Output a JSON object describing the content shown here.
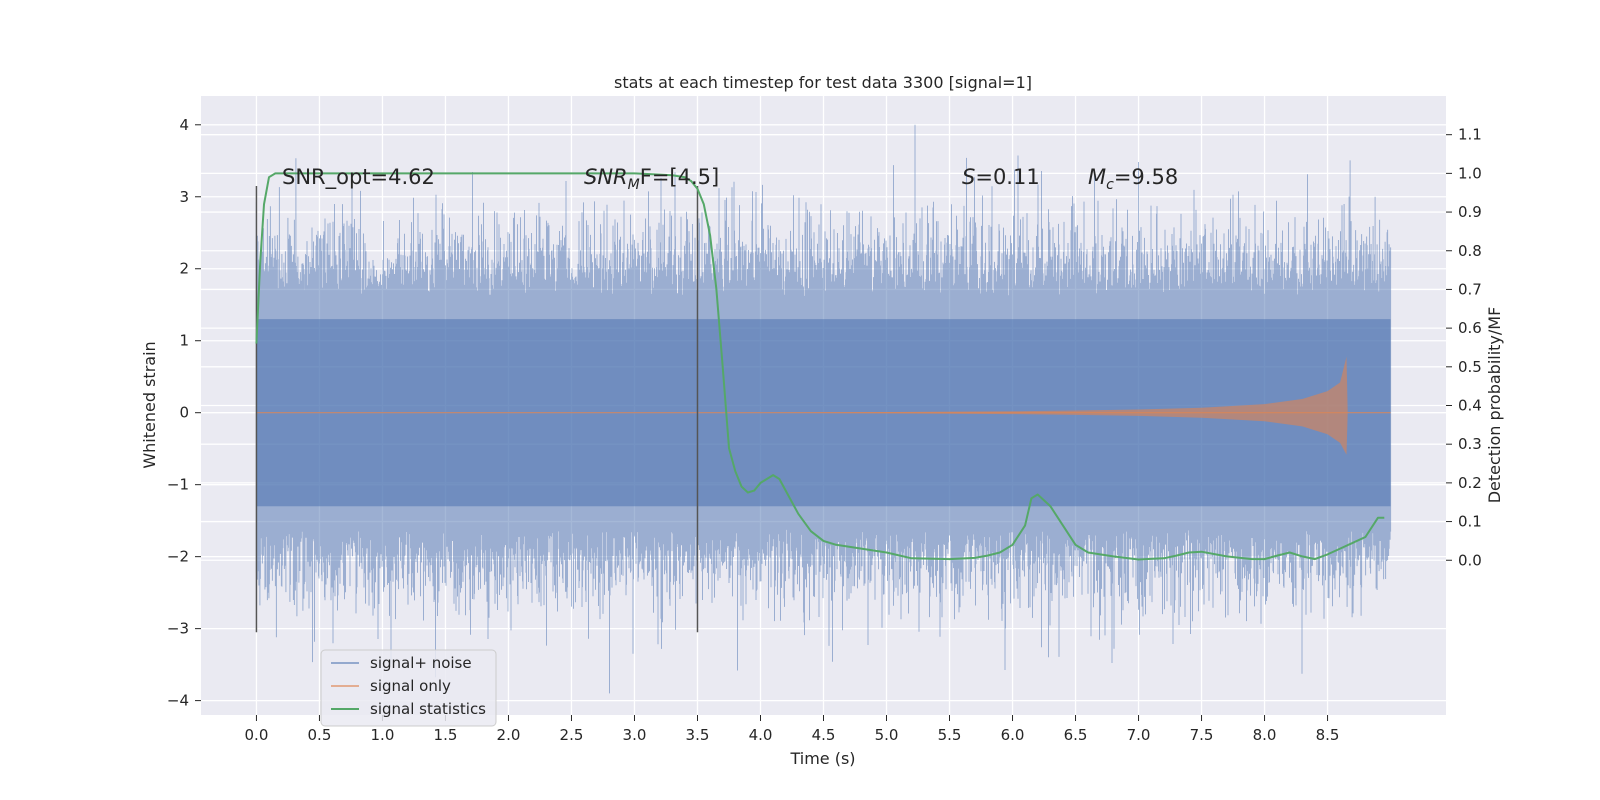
{
  "chart_data": {
    "type": "line",
    "title": "stats at each timestep for test data 3300 [signal=1]",
    "xlabel": "Time (s)",
    "ylabel": "Whitened strain",
    "ylabel_right": "Detection probability/MF",
    "xlim": [
      -0.44,
      9.44
    ],
    "ylim": [
      -4.2,
      4.4
    ],
    "ylim_right": [
      -0.4,
      1.2
    ],
    "xticks": [
      "0.0",
      "0.5",
      "1.0",
      "1.5",
      "2.0",
      "2.5",
      "3.0",
      "3.5",
      "4.0",
      "4.5",
      "5.0",
      "5.5",
      "6.0",
      "6.5",
      "7.0",
      "7.5",
      "8.0",
      "8.5"
    ],
    "yticks": [
      "4",
      "3",
      "2",
      "1",
      "0",
      "−1",
      "−2",
      "−3",
      "−4"
    ],
    "yticks_right": [
      "1.1",
      "1.0",
      "0.9",
      "0.8",
      "0.7",
      "0.6",
      "0.5",
      "0.4",
      "0.3",
      "0.2",
      "0.1",
      "0.0"
    ],
    "grid": true,
    "legend_position": "lower-left",
    "annotations": {
      "snr_opt": "SNR_opt=4.62",
      "snr_mf_math": "SNR",
      "snr_mf_sub": "M",
      "snr_mf_rest": "F=[4.5]",
      "s_math": "S",
      "s_rest": "=0.11",
      "mc_math": "M",
      "mc_sub": "c",
      "mc_rest": "=9.58"
    },
    "markers": [
      0.0,
      3.5
    ],
    "series": [
      {
        "name": "signal+ noise",
        "color": "#4c72b0",
        "x_range": [
          0.0,
          9.0
        ],
        "envelope_upper": 1.3,
        "envelope_lower": -1.3,
        "max": 4.0,
        "min": -3.9
      },
      {
        "name": "signal only",
        "color": "#dd8452",
        "x": [
          0.0,
          4.0,
          5.0,
          6.0,
          6.5,
          7.0,
          7.5,
          8.0,
          8.3,
          8.5,
          8.6,
          8.65,
          8.66
        ],
        "amplitude": [
          0.0,
          0.0,
          0.01,
          0.02,
          0.03,
          0.045,
          0.07,
          0.12,
          0.19,
          0.3,
          0.42,
          0.78,
          0.0
        ]
      },
      {
        "name": "signal statistics",
        "color": "#55a868",
        "x": [
          0.0,
          0.03,
          0.06,
          0.1,
          0.15,
          0.22,
          0.3,
          0.5,
          1.0,
          2.0,
          3.0,
          3.3,
          3.4,
          3.45,
          3.5,
          3.55,
          3.6,
          3.65,
          3.7,
          3.75,
          3.8,
          3.85,
          3.9,
          3.95,
          4.0,
          4.05,
          4.1,
          4.15,
          4.2,
          4.3,
          4.4,
          4.5,
          4.6,
          4.8,
          5.0,
          5.2,
          5.5,
          5.7,
          5.8,
          5.9,
          6.0,
          6.1,
          6.15,
          6.2,
          6.3,
          6.4,
          6.5,
          6.6,
          6.8,
          7.0,
          7.2,
          7.3,
          7.4,
          7.5,
          7.7,
          7.9,
          8.0,
          8.1,
          8.2,
          8.3,
          8.4,
          8.5,
          8.6,
          8.7,
          8.8,
          8.9,
          8.95
        ],
        "y": [
          0.56,
          0.77,
          0.92,
          0.99,
          1.0,
          1.0,
          1.0,
          1.0,
          1.0,
          1.0,
          1.0,
          0.995,
          0.99,
          0.98,
          0.96,
          0.92,
          0.84,
          0.7,
          0.5,
          0.29,
          0.23,
          0.19,
          0.175,
          0.18,
          0.2,
          0.21,
          0.22,
          0.21,
          0.18,
          0.12,
          0.075,
          0.05,
          0.04,
          0.03,
          0.02,
          0.005,
          0.003,
          0.006,
          0.012,
          0.02,
          0.04,
          0.09,
          0.16,
          0.17,
          0.14,
          0.09,
          0.04,
          0.02,
          0.01,
          0.002,
          0.005,
          0.012,
          0.02,
          0.022,
          0.01,
          0.003,
          0.003,
          0.012,
          0.02,
          0.01,
          0.003,
          0.015,
          0.03,
          0.045,
          0.06,
          0.11,
          0.11
        ]
      }
    ]
  }
}
